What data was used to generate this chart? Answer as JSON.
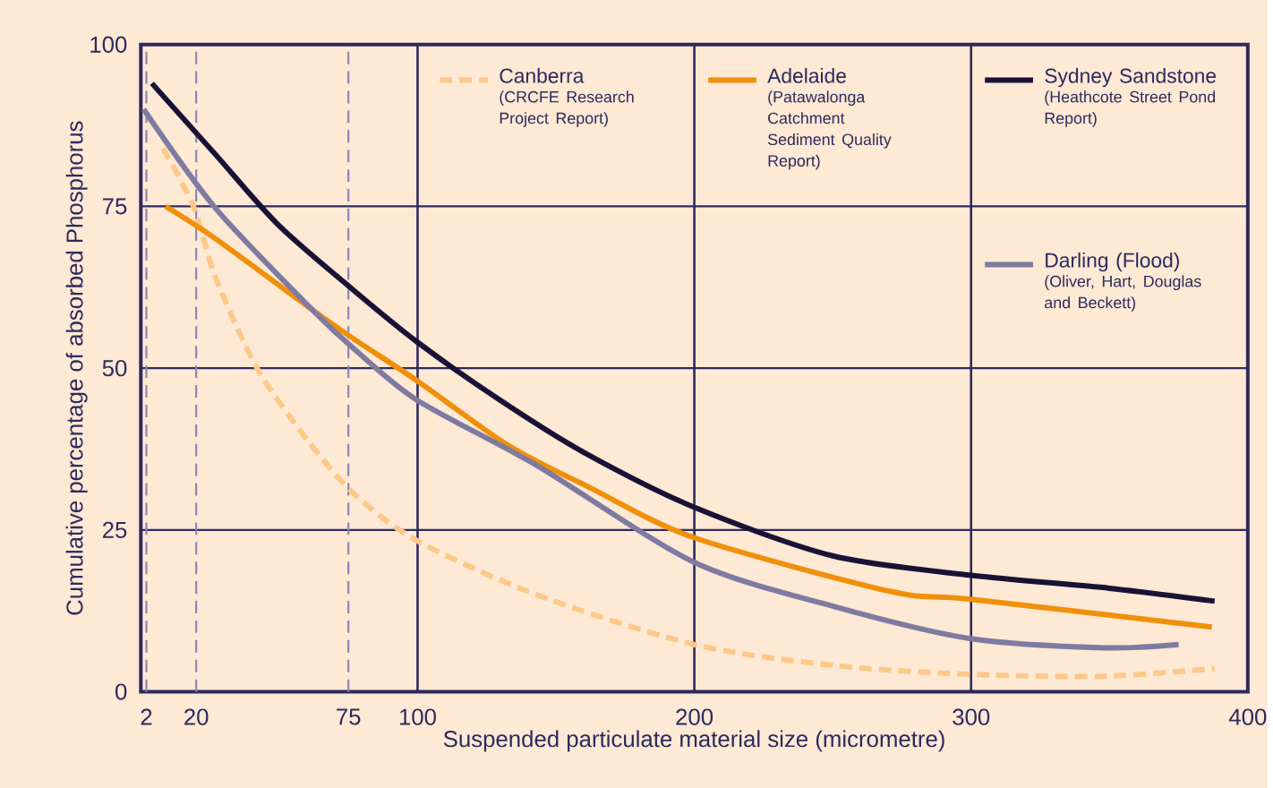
{
  "chart_data": {
    "type": "line",
    "xlabel": "Suspended particulate material size (micrometre)",
    "ylabel": "Cumulative percentage of absorbed Phosphorus",
    "xlim": [
      0,
      400
    ],
    "ylim": [
      0,
      100
    ],
    "xticks": [
      2,
      20,
      75,
      100,
      200,
      300,
      400
    ],
    "yticks": [
      0,
      25,
      50,
      75,
      100
    ],
    "grid": "y",
    "legend": "top right",
    "marker": "none",
    "series": [
      {
        "name": "Canberra",
        "color": "#fcc98a",
        "line_style": "dashed",
        "x": [
          8,
          19,
          27,
          42,
          60,
          77,
          100,
          143,
          200,
          252,
          300,
          348,
          388
        ],
        "values": [
          84,
          75,
          64,
          50,
          39,
          30.6,
          23.3,
          15,
          7.3,
          4,
          2.7,
          2.4,
          3.6
        ]
      },
      {
        "name": "Adelaide",
        "color": "#f0900a",
        "line_style": "solid",
        "x": [
          9,
          27,
          62,
          77,
          100,
          133,
          162,
          200,
          271,
          300,
          387
        ],
        "values": [
          75,
          70,
          59,
          54.5,
          48,
          38,
          31.6,
          23.8,
          15.5,
          14.3,
          10
        ]
      },
      {
        "name": "Sydney Sandstone",
        "color": "#1a1236",
        "line_style": "solid",
        "x": [
          4,
          27,
          50,
          77,
          100,
          130,
          160,
          200,
          250,
          300,
          350,
          388
        ],
        "values": [
          94,
          83,
          72,
          62,
          54,
          45,
          37,
          28.5,
          21,
          18,
          16,
          14
        ]
      },
      {
        "name": "Darling (Flood)",
        "color": "#7f7aa0",
        "line_style": "solid",
        "x": [
          1,
          27,
          62,
          77,
          100,
          143,
          200,
          252,
          300,
          348,
          375
        ],
        "values": [
          90,
          74.7,
          59,
          53,
          45,
          35,
          20,
          13,
          8.2,
          6.8,
          7.3
        ]
      }
    ],
    "annotations": [
      "(CRCFE Research Project Report)",
      "(Patawalonga Catchment Sediment Quality Report)",
      "(Heathcote Street Pond Report)",
      "(Oliver, Hart, Douglas and Beckett)"
    ],
    "ref_lines": [
      {
        "axis": "x",
        "value": 2,
        "color": "#8a86b8",
        "line_style": "dashed"
      },
      {
        "axis": "x",
        "value": 20,
        "color": "#8a86b8",
        "line_style": "dashed"
      },
      {
        "axis": "x",
        "value": 75,
        "color": "#8a86b8",
        "line_style": "dashed"
      },
      {
        "axis": "x",
        "value": 100,
        "color": "#2e2a5e",
        "line_style": "solid"
      },
      {
        "axis": "x",
        "value": 200,
        "color": "#2e2a5e",
        "line_style": "solid"
      },
      {
        "axis": "x",
        "value": 300,
        "color": "#2e2a5e",
        "line_style": "solid"
      }
    ]
  }
}
